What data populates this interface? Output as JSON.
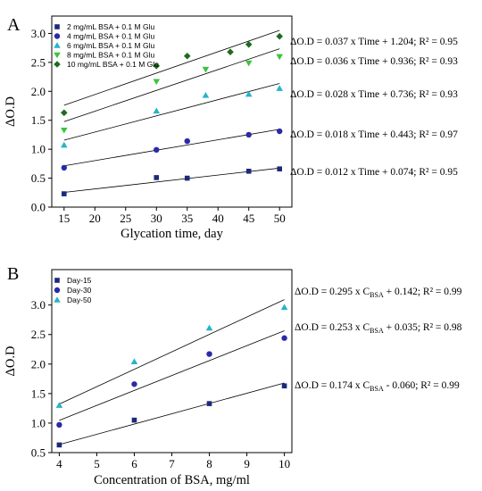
{
  "chart_data": [
    {
      "type": "scatter",
      "panel_label": "A",
      "xlabel": "Glycation time, day",
      "ylabel": "ΔO.D",
      "xlim": [
        13,
        52
      ],
      "ylim": [
        0,
        3.3
      ],
      "xticks": [
        15,
        20,
        25,
        30,
        35,
        40,
        45,
        50
      ],
      "yticks": [
        0.0,
        0.5,
        1.0,
        1.5,
        2.0,
        2.5,
        3.0
      ],
      "ytick_labels": [
        "0.0",
        "0.5",
        "1.0",
        "1.5",
        "2.0",
        "2.5",
        "3.0"
      ],
      "legend_position": "top-left",
      "series": [
        {
          "name": "2 mg/mL BSA + 0.1 M Glu",
          "marker": "square",
          "color": "#1b2a7a",
          "x": [
            15,
            30,
            35,
            45,
            50
          ],
          "y": [
            0.23,
            0.51,
            0.5,
            0.62,
            0.66
          ],
          "fit": {
            "slope": 0.012,
            "intercept": 0.074
          },
          "equation": {
            "prefix": "ΔO.D",
            "body": "  = 0.012 x Time + 0.074; R² = 0.95"
          }
        },
        {
          "name": "4 mg/mL BSA + 0.1 M Glu",
          "marker": "circle",
          "color": "#2a2aa8",
          "x": [
            15,
            30,
            35,
            45,
            50
          ],
          "y": [
            0.68,
            0.99,
            1.14,
            1.25,
            1.31
          ],
          "fit": {
            "slope": 0.018,
            "intercept": 0.443
          },
          "equation": {
            "prefix": "ΔO.D",
            "body": " = 0.018 x Time + 0.443; R² = 0.97"
          }
        },
        {
          "name": "6 mg/mL BSA + 0.1 M Glu",
          "marker": "triangle-up",
          "color": "#27b3c9",
          "x": [
            15,
            30,
            38,
            45,
            50
          ],
          "y": [
            1.07,
            1.66,
            1.93,
            1.95,
            2.05
          ],
          "fit": {
            "slope": 0.028,
            "intercept": 0.736
          },
          "equation": {
            "prefix": "ΔO.D",
            "body": " = 0.028 x Time + 0.736; R² = 0.93"
          }
        },
        {
          "name": "8 mg/mL BSA + 0.1 M Glu",
          "marker": "triangle-down",
          "color": "#3cc43c",
          "x": [
            15,
            30,
            38,
            45,
            50
          ],
          "y": [
            1.33,
            2.17,
            2.38,
            2.49,
            2.6
          ],
          "fit": {
            "slope": 0.036,
            "intercept": 0.936
          },
          "equation": {
            "prefix": "ΔO.D",
            "body": " = 0.036 x Time + 0.936; R² = 0.93"
          }
        },
        {
          "name": "10 mg/mL BSA + 0.1 M Glu",
          "marker": "diamond",
          "color": "#1e6b1e",
          "x": [
            15,
            30,
            35,
            42,
            45,
            50
          ],
          "y": [
            1.63,
            2.44,
            2.61,
            2.68,
            2.81,
            2.95
          ],
          "fit": {
            "slope": 0.037,
            "intercept": 1.204
          },
          "equation": {
            "prefix": "ΔO.D",
            "body": "  = 0.037 x Time + 1.204; R² = 0.95"
          }
        }
      ]
    },
    {
      "type": "scatter",
      "panel_label": "B",
      "xlabel": "Concentration of BSA, mg/ml",
      "ylabel": "ΔO.D",
      "xlim": [
        3.8,
        10.2
      ],
      "ylim": [
        0.5,
        3.6
      ],
      "xticks": [
        4,
        5,
        6,
        7,
        8,
        9,
        10
      ],
      "yticks": [
        0.5,
        1.0,
        1.5,
        2.0,
        2.5,
        3.0
      ],
      "ytick_labels": [
        "0.5",
        "1.0",
        "1.5",
        "2.0",
        "2.5",
        "3.0"
      ],
      "legend_position": "top-left",
      "series": [
        {
          "name": "Day-15",
          "marker": "square",
          "color": "#1b2a7a",
          "x": [
            4,
            6,
            8,
            10
          ],
          "y": [
            0.63,
            1.05,
            1.33,
            1.63
          ],
          "fit": {
            "slope": 0.174,
            "intercept": -0.06
          },
          "equation": {
            "prefix": "ΔO.D",
            "pre": " = 0.174  x C",
            "sub": "BSA",
            "post": " - 0.060; R² = 0.99"
          }
        },
        {
          "name": "Day-30",
          "marker": "circle",
          "color": "#2a2aa8",
          "x": [
            4,
            6,
            8,
            10
          ],
          "y": [
            0.97,
            1.66,
            2.17,
            2.44
          ],
          "fit": {
            "slope": 0.253,
            "intercept": 0.035
          },
          "equation": {
            "prefix": "ΔO.D",
            "pre": " = 0.253 x C",
            "sub": "BSA",
            "post": " + 0.035; R² = 0.98"
          }
        },
        {
          "name": "Day-50",
          "marker": "triangle-up",
          "color": "#27b3c9",
          "x": [
            4,
            6,
            8,
            10
          ],
          "y": [
            1.3,
            2.04,
            2.61,
            2.96
          ],
          "fit": {
            "slope": 0.295,
            "intercept": 0.142
          },
          "equation": {
            "prefix": "ΔO.D",
            "pre": " = 0.295 x C",
            "sub": "BSA",
            "post": " + 0.142; R² = 0.99"
          }
        }
      ]
    }
  ]
}
